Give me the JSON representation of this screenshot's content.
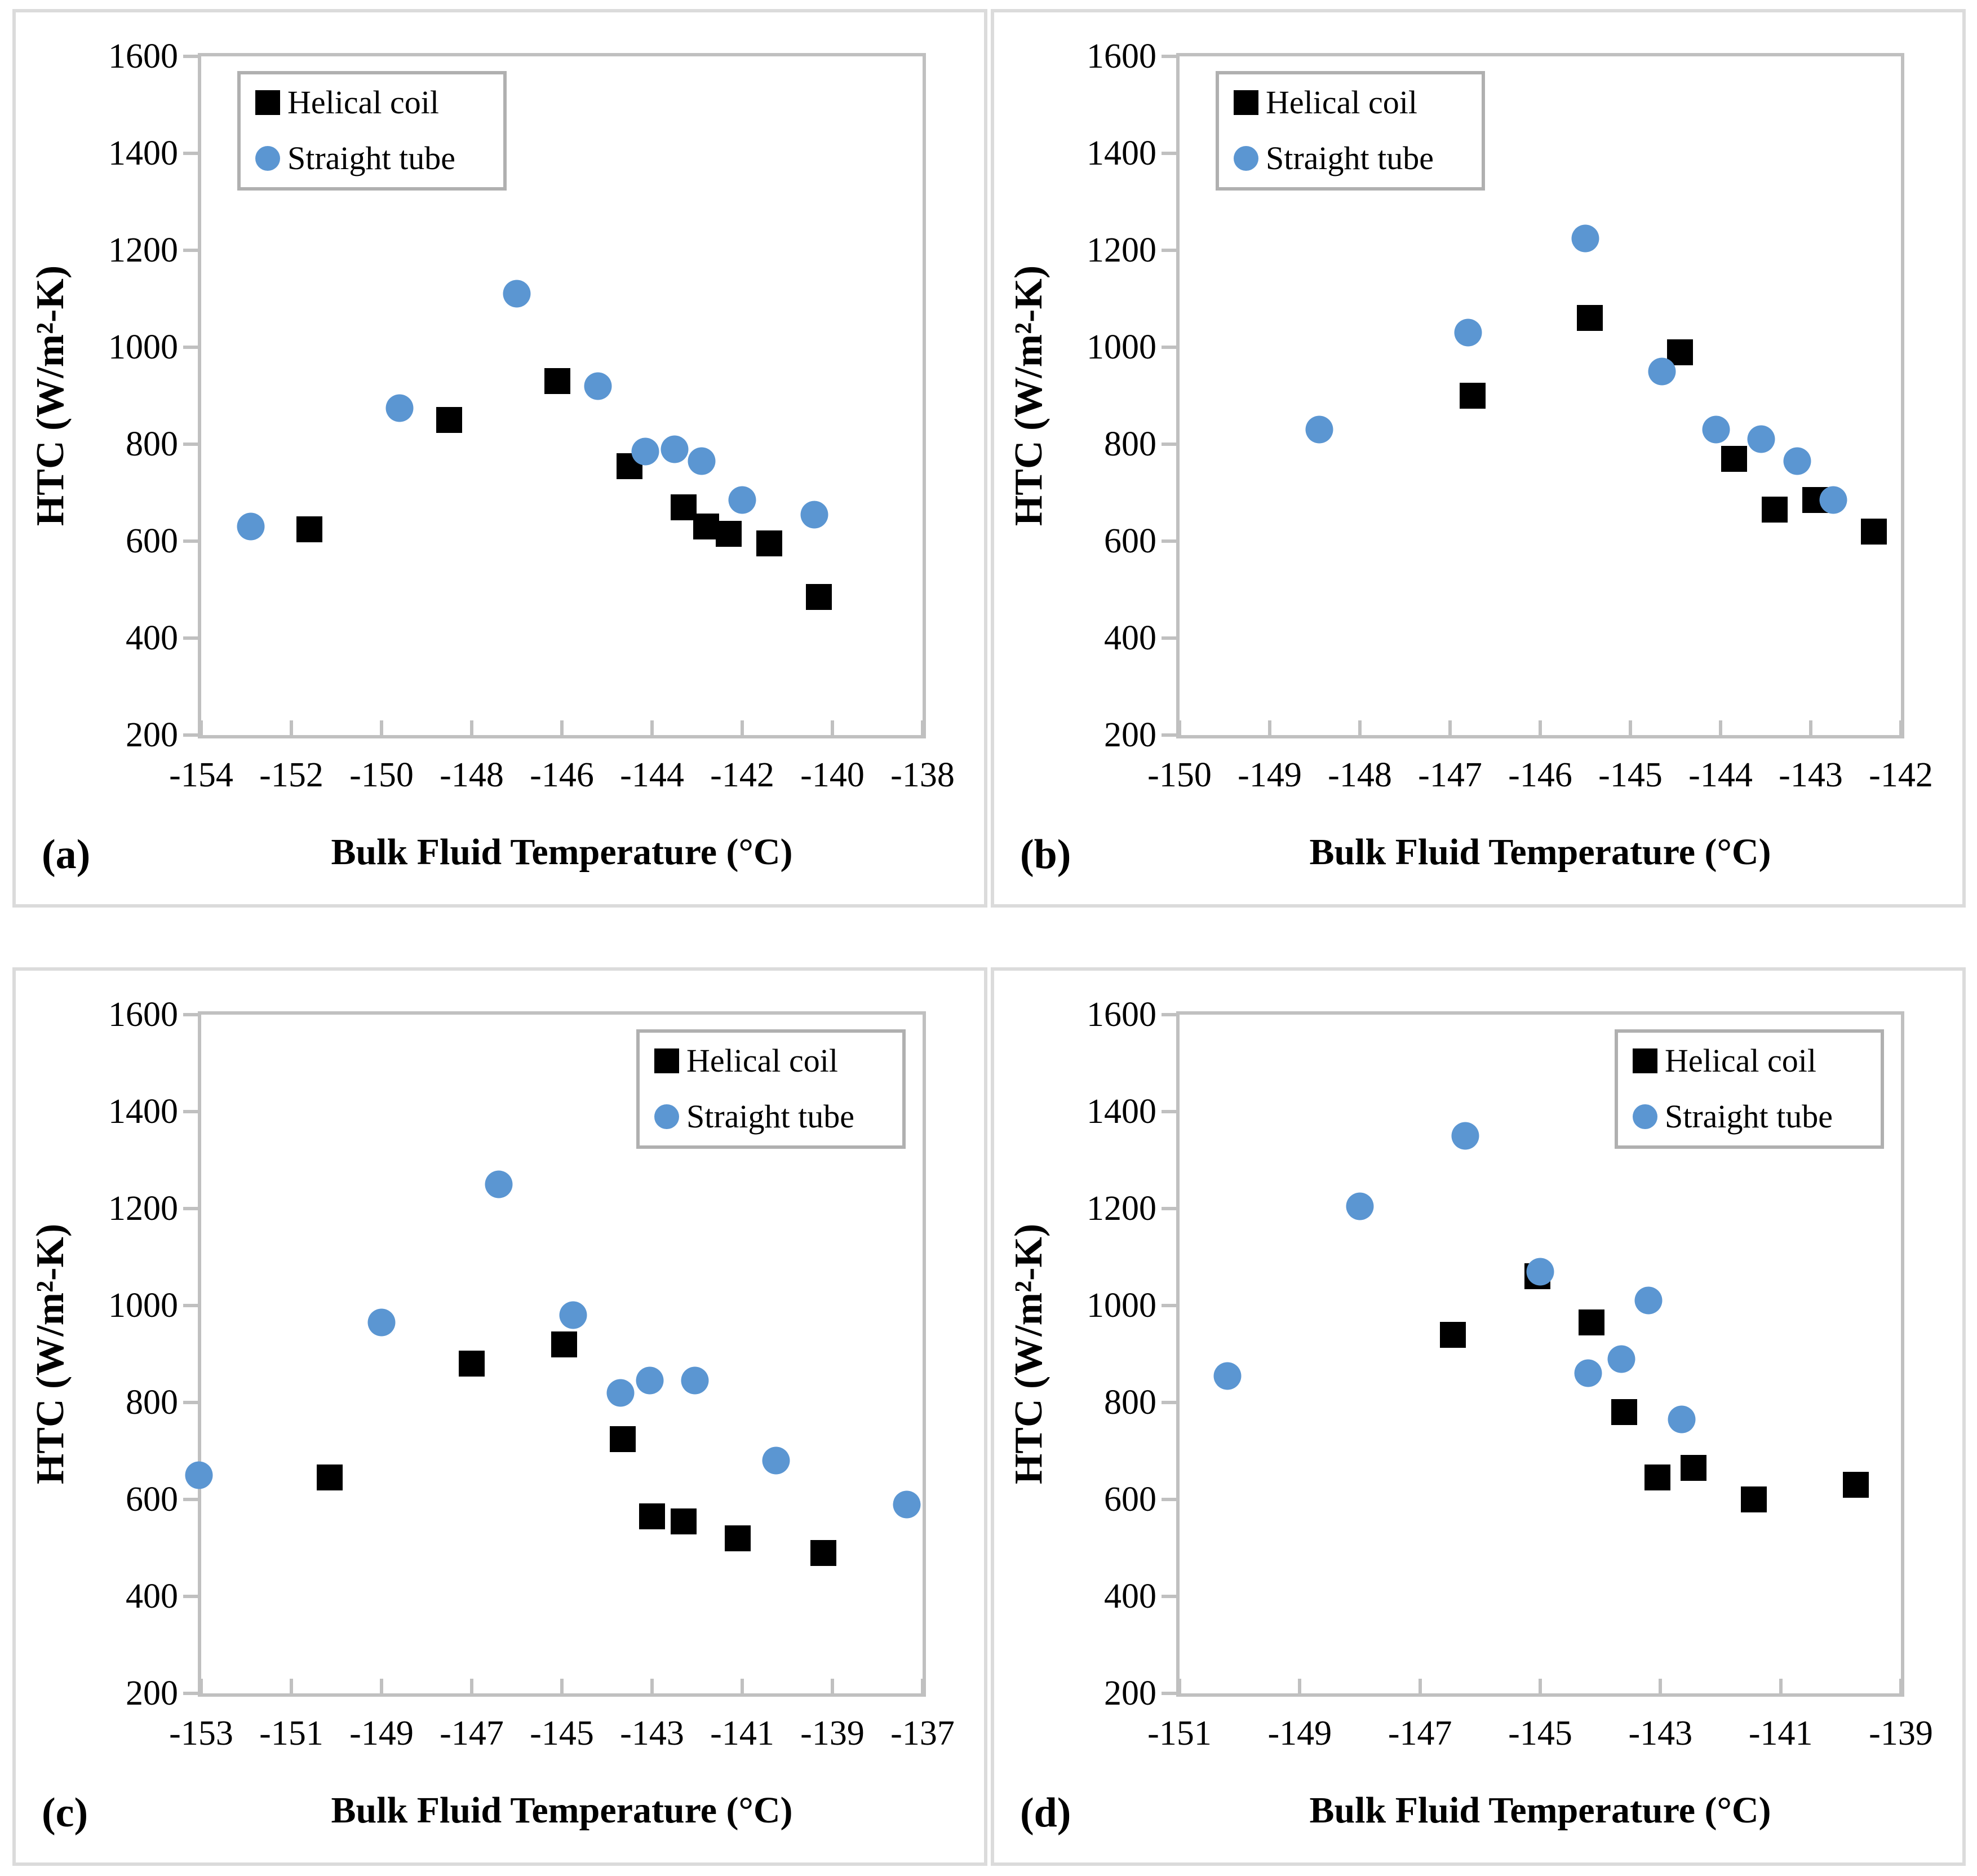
{
  "figure": {
    "background": "#FFFFFF",
    "panel_border_color": "#DBDBDB",
    "axis_frame_color": "#C0C0C0",
    "legend_border_color": "#B0B0B0",
    "text_color": "#000000",
    "helical_color": "#000000",
    "straight_color": "#5B96D2"
  },
  "chart_data": [
    {
      "panel_label": "(a)",
      "type": "scatter",
      "xlabel": "Bulk Fluid Temperature (°C)",
      "ylabel": "HTC (W/m²-K)",
      "xlim": [
        -154,
        -138
      ],
      "ylim": [
        200,
        1600
      ],
      "xticks": [
        -154,
        -152,
        -150,
        -148,
        -146,
        -144,
        -142,
        -140,
        -138
      ],
      "yticks": [
        200,
        400,
        600,
        800,
        1000,
        1200,
        1400,
        1600
      ],
      "grid": false,
      "legend_position": "top-left",
      "series": [
        {
          "name": "Helical coil",
          "marker": "square",
          "color": "#000000",
          "points": [
            [
              -151.6,
              625
            ],
            [
              -148.5,
              850
            ],
            [
              -146.1,
              930
            ],
            [
              -144.5,
              755
            ],
            [
              -143.3,
              670
            ],
            [
              -142.8,
              630
            ],
            [
              -142.3,
              615
            ],
            [
              -141.4,
              595
            ],
            [
              -140.3,
              485
            ]
          ]
        },
        {
          "name": "Straight tube",
          "marker": "circle",
          "color": "#5B96D2",
          "points": [
            [
              -152.9,
              630
            ],
            [
              -149.6,
              875
            ],
            [
              -147.0,
              1110
            ],
            [
              -145.2,
              920
            ],
            [
              -144.15,
              785
            ],
            [
              -143.5,
              790
            ],
            [
              -142.9,
              765
            ],
            [
              -142.0,
              685
            ],
            [
              -140.4,
              655
            ]
          ]
        }
      ]
    },
    {
      "panel_label": "(b)",
      "type": "scatter",
      "xlabel": "Bulk Fluid Temperature (°C)",
      "ylabel": "HTC (W/m²-K)",
      "xlim": [
        -150,
        -142
      ],
      "ylim": [
        200,
        1600
      ],
      "xticks": [
        -150,
        -149,
        -148,
        -147,
        -146,
        -145,
        -144,
        -143,
        -142
      ],
      "yticks": [
        200,
        400,
        600,
        800,
        1000,
        1200,
        1400,
        1600
      ],
      "grid": false,
      "legend_position": "top-left",
      "series": [
        {
          "name": "Helical coil",
          "marker": "square",
          "color": "#000000",
          "points": [
            [
              -146.75,
              900
            ],
            [
              -145.45,
              1060
            ],
            [
              -144.45,
              990
            ],
            [
              -143.85,
              770
            ],
            [
              -143.4,
              665
            ],
            [
              -142.95,
              685
            ],
            [
              -142.3,
              620
            ]
          ]
        },
        {
          "name": "Straight tube",
          "marker": "circle",
          "color": "#5B96D2",
          "points": [
            [
              -148.45,
              830
            ],
            [
              -146.8,
              1030
            ],
            [
              -145.5,
              1225
            ],
            [
              -144.65,
              950
            ],
            [
              -144.05,
              830
            ],
            [
              -143.55,
              810
            ],
            [
              -143.15,
              765
            ],
            [
              -142.75,
              685
            ]
          ]
        }
      ]
    },
    {
      "panel_label": "(c)",
      "type": "scatter",
      "xlabel": "Bulk Fluid Temperature (°C)",
      "ylabel": "HTC (W/m²-K)",
      "xlim": [
        -153,
        -137
      ],
      "ylim": [
        200,
        1600
      ],
      "xticks": [
        -153,
        -151,
        -149,
        -147,
        -145,
        -143,
        -141,
        -139,
        -137
      ],
      "yticks": [
        200,
        400,
        600,
        800,
        1000,
        1200,
        1400,
        1600
      ],
      "grid": false,
      "legend_position": "top-right",
      "series": [
        {
          "name": "Helical coil",
          "marker": "square",
          "color": "#000000",
          "points": [
            [
              -150.15,
              645
            ],
            [
              -147.0,
              880
            ],
            [
              -144.95,
              920
            ],
            [
              -143.65,
              725
            ],
            [
              -143.0,
              565
            ],
            [
              -142.3,
              555
            ],
            [
              -141.1,
              520
            ],
            [
              -139.2,
              490
            ]
          ]
        },
        {
          "name": "Straight tube",
          "marker": "circle",
          "color": "#5B96D2",
          "points": [
            [
              -153.05,
              650
            ],
            [
              -149.0,
              965
            ],
            [
              -146.4,
              1250
            ],
            [
              -144.75,
              980
            ],
            [
              -143.7,
              820
            ],
            [
              -143.05,
              845
            ],
            [
              -142.05,
              845
            ],
            [
              -140.25,
              680
            ],
            [
              -137.35,
              590
            ]
          ]
        }
      ]
    },
    {
      "panel_label": "(d)",
      "type": "scatter",
      "xlabel": "Bulk Fluid Temperature (°C)",
      "ylabel": "HTC (W/m²-K)",
      "xlim": [
        -151,
        -139
      ],
      "ylim": [
        200,
        1600
      ],
      "xticks": [
        -151,
        -149,
        -147,
        -145,
        -143,
        -141,
        -139
      ],
      "yticks": [
        200,
        400,
        600,
        800,
        1000,
        1200,
        1400,
        1600
      ],
      "grid": false,
      "legend_position": "top-right",
      "series": [
        {
          "name": "Helical coil",
          "marker": "square",
          "color": "#000000",
          "points": [
            [
              -146.45,
              940
            ],
            [
              -145.05,
              1060
            ],
            [
              -144.15,
              965
            ],
            [
              -143.6,
              780
            ],
            [
              -143.05,
              645
            ],
            [
              -142.45,
              665
            ],
            [
              -141.45,
              600
            ],
            [
              -139.75,
              630
            ]
          ]
        },
        {
          "name": "Straight tube",
          "marker": "circle",
          "color": "#5B96D2",
          "points": [
            [
              -150.2,
              855
            ],
            [
              -148.0,
              1205
            ],
            [
              -146.25,
              1350
            ],
            [
              -145.0,
              1070
            ],
            [
              -144.2,
              860
            ],
            [
              -143.65,
              890
            ],
            [
              -143.2,
              1010
            ],
            [
              -142.65,
              765
            ]
          ]
        }
      ]
    }
  ]
}
